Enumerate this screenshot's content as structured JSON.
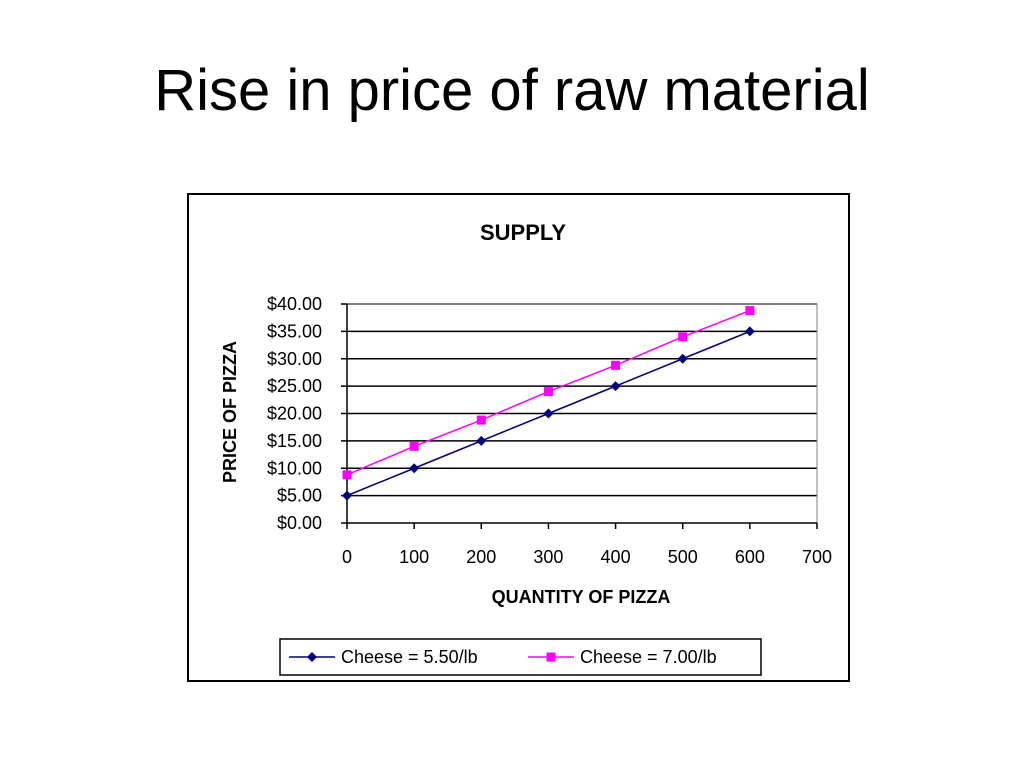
{
  "slide": {
    "title": "Rise in price of raw material"
  },
  "chart_data": {
    "type": "line",
    "title": "SUPPLY",
    "xlabel": "QUANTITY OF PIZZA",
    "ylabel": "PRICE OF PIZZA",
    "x": [
      0,
      100,
      200,
      300,
      400,
      500,
      600
    ],
    "xlim": [
      0,
      700
    ],
    "xticks": [
      0,
      100,
      200,
      300,
      400,
      500,
      600,
      700
    ],
    "xtick_labels": [
      "0",
      "100",
      "200",
      "300",
      "400",
      "500",
      "600",
      "700"
    ],
    "ylim": [
      0,
      40
    ],
    "yticks": [
      0,
      5,
      10,
      15,
      20,
      25,
      30,
      35,
      40
    ],
    "ytick_labels": [
      "$0.00",
      "$5.00",
      "$10.00",
      "$15.00",
      "$20.00",
      "$25.00",
      "$30.00",
      "$35.00",
      "$40.00"
    ],
    "grid": "horizontal",
    "legend_position": "bottom",
    "series": [
      {
        "name": "Cheese = 5.50/lb",
        "values": [
          5,
          10,
          15,
          20,
          25,
          30,
          35
        ],
        "color": "#000080",
        "marker": "diamond"
      },
      {
        "name": "Cheese = 7.00/lb",
        "values": [
          8.8,
          14,
          18.8,
          24,
          28.8,
          34,
          38.8
        ],
        "color": "#ff00ff",
        "marker": "square"
      }
    ]
  }
}
